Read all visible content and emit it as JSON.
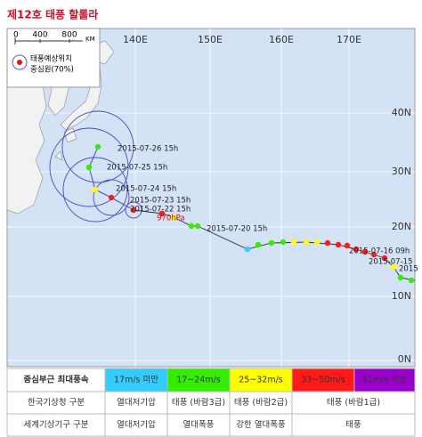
{
  "title": "제12호 태풍 할롤라",
  "map": {
    "longitude_labels": [
      "140E",
      "150E",
      "160E",
      "170E"
    ],
    "latitude_labels": [
      "40N",
      "30N",
      "20N",
      "10N",
      "0N"
    ],
    "scale": {
      "ticks": [
        "0",
        "400",
        "800"
      ],
      "unit": "KM"
    },
    "legend": [
      "태풍예상위치",
      "중심원(70%)"
    ],
    "track_labels": [
      "2015-07-26 15h",
      "2015-07-25 15h",
      "2015-07-24 15h",
      "2015-07-23 15h",
      "2015-07-22 15h",
      "970hPa",
      "2015-07-20 15h",
      "2015-07-16 09h",
      "2015-07-15",
      "2015"
    ]
  },
  "table": {
    "header": [
      "중심부근 최대풍속",
      "17m/s 미만",
      "17~24m/s",
      "25~32m/s",
      "33~50m/s",
      "51m/s 이상"
    ],
    "rows": [
      [
        "한국기상청 구분",
        "열대저기압",
        "태풍 (바람3급)",
        "태풍 (바람2급)",
        "태풍 (바람1급)"
      ],
      [
        "세계기상기구 구분",
        "열대저기압",
        "열대폭풍",
        "강한 열대폭풍",
        "태풍"
      ]
    ]
  }
}
